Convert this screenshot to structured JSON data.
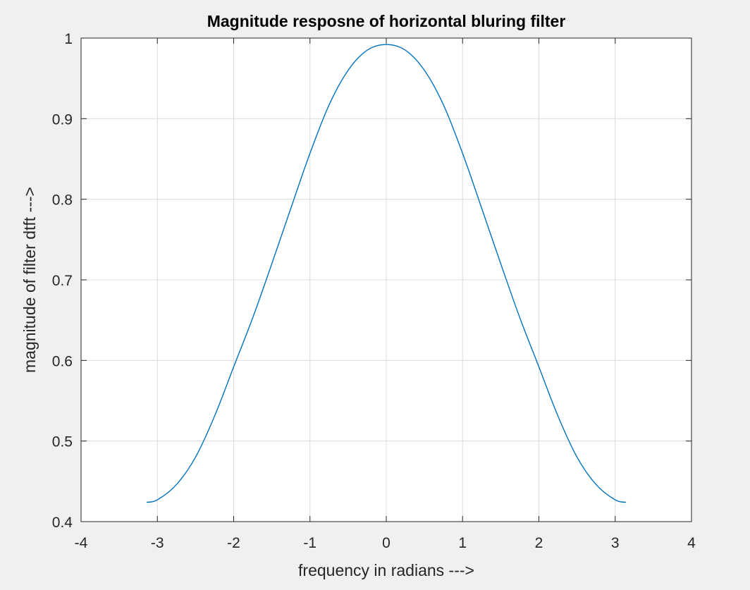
{
  "chart_data": {
    "type": "line",
    "title": "Magnitude resposne of horizontal bluring filter",
    "xlabel": "frequency in radians --->",
    "ylabel": "magnitude of filter dtft  --->",
    "xlim": [
      -4,
      4
    ],
    "ylim": [
      0.4,
      1
    ],
    "xticks": [
      -4,
      -3,
      -2,
      -1,
      0,
      1,
      2,
      3,
      4
    ],
    "yticks": [
      0.4,
      0.5,
      0.6,
      0.7,
      0.8,
      0.9,
      1
    ],
    "xtick_labels": [
      "-4",
      "-3",
      "-2",
      "-1",
      "0",
      "1",
      "2",
      "3",
      "4"
    ],
    "ytick_labels": [
      "0.4",
      "0.5",
      "0.6",
      "0.7",
      "0.8",
      "0.9",
      "1"
    ],
    "grid": true,
    "series": [
      {
        "color": "#0072bd",
        "x": [
          -3.1416,
          -3.0,
          -2.75,
          -2.5,
          -2.25,
          -2.0,
          -1.75,
          -1.5,
          -1.25,
          -1.0,
          -0.75,
          -0.5,
          -0.25,
          0.0,
          0.25,
          0.5,
          0.75,
          1.0,
          1.25,
          1.5,
          1.75,
          2.0,
          2.25,
          2.5,
          2.75,
          3.0,
          3.1416
        ],
        "y": [
          0.424,
          0.427,
          0.446,
          0.48,
          0.531,
          0.592,
          0.653,
          0.72,
          0.789,
          0.857,
          0.917,
          0.96,
          0.985,
          0.992,
          0.985,
          0.96,
          0.917,
          0.857,
          0.789,
          0.72,
          0.653,
          0.592,
          0.531,
          0.48,
          0.446,
          0.427,
          0.424
        ]
      }
    ]
  }
}
